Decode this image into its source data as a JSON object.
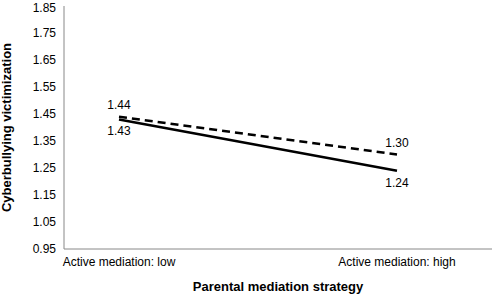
{
  "chart_data": {
    "type": "line",
    "categories": [
      "Active mediation: low",
      "Active mediation: high"
    ],
    "xlabel": "Parental mediation strategy",
    "ylabel": "Cyberbullying victimization",
    "ylim": [
      0.95,
      1.85
    ],
    "yticks": [
      0.95,
      1.05,
      1.15,
      1.25,
      1.35,
      1.45,
      1.55,
      1.65,
      1.75,
      1.85
    ],
    "grid": false,
    "data_labels": true,
    "series": [
      {
        "color": "#000000",
        "line_style": "solid",
        "marker": "none",
        "values": [
          1.43,
          1.24
        ]
      },
      {
        "color": "#000000",
        "line_style": "dashed",
        "marker": "none",
        "values": [
          1.44,
          1.3
        ],
        "value_labels": [
          "1.44",
          "1.30"
        ]
      }
    ]
  }
}
